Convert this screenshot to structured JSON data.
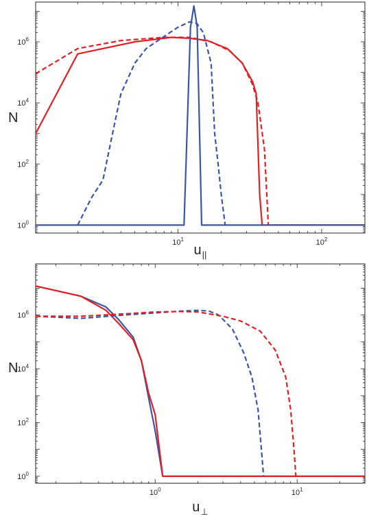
{
  "chart_data": [
    {
      "type": "line",
      "title": "",
      "xlabel": "u",
      "xlabel_subscript": "||",
      "ylabel": "N",
      "xscale": "log",
      "yscale": "log",
      "xlim": [
        1.02,
        200
      ],
      "ylim": [
        0.55,
        20000000
      ],
      "grid": false,
      "xticks": [
        {
          "base": "10",
          "exp": "1",
          "value": 10
        },
        {
          "base": "10",
          "exp": "2",
          "value": 100
        }
      ],
      "yticks": [
        {
          "base": "10",
          "exp": "0",
          "value": 1
        },
        {
          "base": "10",
          "exp": "2",
          "value": 100
        },
        {
          "base": "10",
          "exp": "4",
          "value": 10000
        },
        {
          "base": "10",
          "exp": "6",
          "value": 1000000
        }
      ],
      "series": [
        {
          "color": "#e31e24",
          "dash": "solid",
          "points": [
            [
              1.02,
              1000
            ],
            [
              2,
              400000
            ],
            [
              5,
              1000000
            ],
            [
              9,
              1400000
            ],
            [
              12,
              1300000
            ],
            [
              16,
              1100000
            ],
            [
              22,
              600000
            ],
            [
              28,
              200000
            ],
            [
              33,
              50000
            ],
            [
              35,
              20000
            ],
            [
              37,
              10
            ],
            [
              38.5,
              1
            ],
            [
              200,
              1
            ]
          ]
        },
        {
          "color": "#e31e24",
          "dash": "dashed",
          "points": [
            [
              1.02,
              90000
            ],
            [
              2,
              600000
            ],
            [
              4,
              1100000
            ],
            [
              8,
              1400000
            ],
            [
              12,
              1400000
            ],
            [
              17,
              1000000
            ],
            [
              23,
              500000
            ],
            [
              28,
              200000
            ],
            [
              33,
              40000
            ],
            [
              36,
              10000
            ],
            [
              40,
              300
            ],
            [
              42.5,
              1
            ],
            [
              200,
              1
            ]
          ]
        },
        {
          "color": "#3a55a4",
          "dash": "solid",
          "points": [
            [
              1.02,
              1
            ],
            [
              11,
              1
            ],
            [
              12.2,
              3000000
            ],
            [
              12.9,
              15000000
            ],
            [
              13.6,
              3000000
            ],
            [
              14.6,
              1
            ],
            [
              200,
              1
            ]
          ]
        },
        {
          "color": "#3a55a4",
          "dash": "dashed",
          "points": [
            [
              2,
              1
            ],
            [
              2.5,
              8
            ],
            [
              3,
              30
            ],
            [
              3.5,
              1000
            ],
            [
              4,
              20000
            ],
            [
              5,
              200000
            ],
            [
              6,
              600000
            ],
            [
              8,
              1500000
            ],
            [
              10,
              3000000
            ],
            [
              12,
              4500000
            ],
            [
              13.5,
              4000000
            ],
            [
              15,
              2000000
            ],
            [
              17,
              200000
            ],
            [
              18,
              1000
            ],
            [
              19,
              100
            ],
            [
              20,
              10
            ],
            [
              21.3,
              1
            ]
          ]
        }
      ]
    },
    {
      "type": "line",
      "title": "",
      "xlabel": "u",
      "xlabel_subscript": "⊥",
      "ylabel": "N",
      "xscale": "log",
      "yscale": "log",
      "xlim": [
        0.144,
        30
      ],
      "ylim": [
        0.55,
        80000000
      ],
      "grid": false,
      "xticks": [
        {
          "base": "10",
          "exp": "0",
          "value": 1
        },
        {
          "base": "10",
          "exp": "1",
          "value": 10
        }
      ],
      "yticks": [
        {
          "base": "10",
          "exp": "0",
          "value": 1
        },
        {
          "base": "10",
          "exp": "2",
          "value": 100
        },
        {
          "base": "10",
          "exp": "4",
          "value": 10000
        },
        {
          "base": "10",
          "exp": "6",
          "value": 1000000
        }
      ],
      "series": [
        {
          "color": "#3a55a4",
          "dash": "solid",
          "points": [
            [
              0.144,
              12000000
            ],
            [
              0.3,
              5000000
            ],
            [
              0.45,
              2000000
            ],
            [
              0.55,
              700000
            ],
            [
              0.7,
              150000
            ],
            [
              0.8,
              20000
            ],
            [
              0.9,
              800
            ],
            [
              1.0,
              50
            ],
            [
              1.13,
              1
            ],
            [
              30,
              1
            ]
          ]
        },
        {
          "color": "#e31e24",
          "dash": "solid",
          "points": [
            [
              0.144,
              12000000
            ],
            [
              0.3,
              5000000
            ],
            [
              0.45,
              1500000
            ],
            [
              0.55,
              500000
            ],
            [
              0.7,
              120000
            ],
            [
              0.8,
              20000
            ],
            [
              0.9,
              1200
            ],
            [
              1.0,
              200
            ],
            [
              1.13,
              1
            ],
            [
              30,
              1
            ]
          ]
        },
        {
          "color": "#3a55a4",
          "dash": "dashed",
          "points": [
            [
              0.144,
              900000
            ],
            [
              0.3,
              750000
            ],
            [
              0.6,
              1000000
            ],
            [
              1.0,
              1200000
            ],
            [
              1.5,
              1400000
            ],
            [
              2,
              1500000
            ],
            [
              2.4,
              1400000
            ],
            [
              2.8,
              1000000
            ],
            [
              3.5,
              300000
            ],
            [
              4.2,
              40000
            ],
            [
              4.8,
              5000
            ],
            [
              5.3,
              300
            ],
            [
              5.6,
              10
            ],
            [
              5.8,
              1
            ]
          ]
        },
        {
          "color": "#e31e24",
          "dash": "dashed",
          "points": [
            [
              0.144,
              900000
            ],
            [
              0.3,
              900000
            ],
            [
              0.6,
              1100000
            ],
            [
              1.0,
              1300000
            ],
            [
              1.5,
              1350000
            ],
            [
              2,
              1300000
            ],
            [
              3,
              900000
            ],
            [
              4,
              600000
            ],
            [
              5.5,
              250000
            ],
            [
              7,
              50000
            ],
            [
              8.3,
              5000
            ],
            [
              9,
              300
            ],
            [
              9.5,
              10
            ],
            [
              9.8,
              1
            ]
          ]
        }
      ]
    }
  ]
}
